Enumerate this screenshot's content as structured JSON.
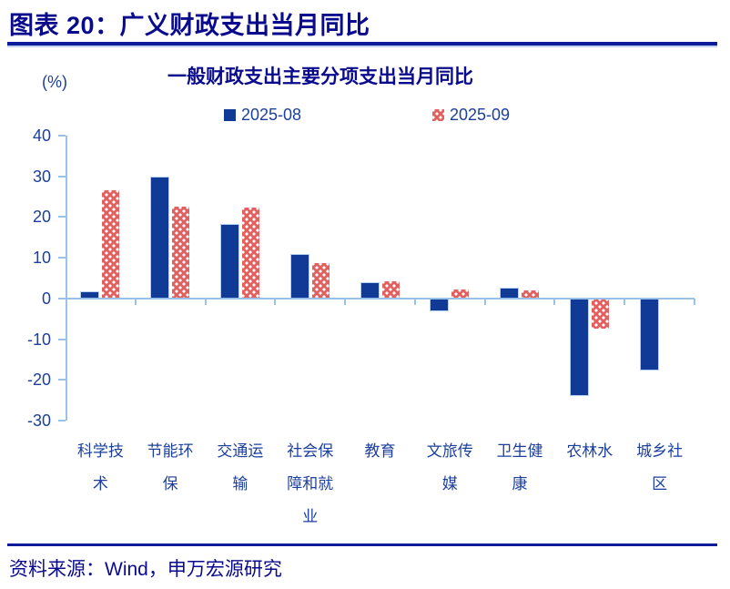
{
  "header": {
    "title": "图表 20：广义财政支出当月同比"
  },
  "footer": {
    "source": "资料来源：Wind，申万宏源研究"
  },
  "chart_data": {
    "type": "bar",
    "title": "一般财政支出主要分项支出当月同比",
    "unit_label": "(%)",
    "categories": [
      "科学技术",
      "节能环保",
      "交通运输",
      "社会保障和就业",
      "教育",
      "文旅传媒",
      "卫生健康",
      "农林水",
      "城乡社区"
    ],
    "series": [
      {
        "name": "2025-08",
        "values": [
          1.5,
          29.8,
          18.0,
          10.8,
          3.8,
          -2.9,
          2.4,
          -23.8,
          -17.5
        ]
      },
      {
        "name": "2025-09",
        "values": [
          26.5,
          22.5,
          22.3,
          8.7,
          4.3,
          2.3,
          1.9,
          -7.4,
          null
        ]
      }
    ],
    "ylim": [
      -30,
      40
    ],
    "yticks": [
      40,
      30,
      20,
      10,
      0,
      -10,
      -20,
      -30
    ],
    "legend_position": "top",
    "grid": false,
    "colors": {
      "series_2025_08": "#113a96",
      "series_2025_09": "#e16060",
      "axis": "#9bc2e6",
      "text": "#1c3f9e",
      "title": "#0a0a8c"
    }
  }
}
